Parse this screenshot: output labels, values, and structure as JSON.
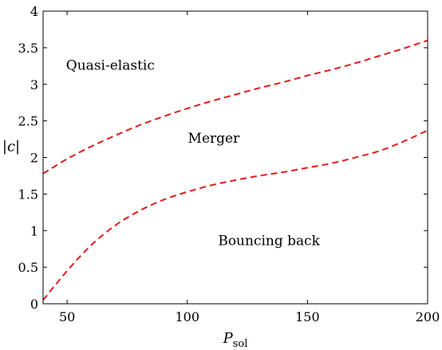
{
  "chart_data": {
    "type": "line",
    "xlabel": "P",
    "xlabel_sub": "sol",
    "ylabel": "|c|",
    "xlim": [
      40,
      200
    ],
    "ylim": [
      0,
      4
    ],
    "xticks": [
      50,
      100,
      150,
      200
    ],
    "yticks": [
      0,
      0.5,
      1,
      1.5,
      2,
      2.5,
      3,
      3.5,
      4
    ],
    "ytick_labels": [
      "0",
      "0.5",
      "1",
      "1.5",
      "2",
      "2.5",
      "3",
      "3.5",
      "4"
    ],
    "grid": false,
    "line_color": "#e41a1c",
    "line_style": "dashed",
    "series": [
      {
        "x": [
          40,
          50,
          60,
          70,
          80,
          90,
          100,
          110,
          120,
          130,
          140,
          150,
          160,
          170,
          180,
          190,
          200
        ],
        "y": [
          1.78,
          1.98,
          2.15,
          2.3,
          2.44,
          2.56,
          2.67,
          2.77,
          2.86,
          2.95,
          3.03,
          3.12,
          3.2,
          3.29,
          3.39,
          3.49,
          3.6
        ]
      },
      {
        "x": [
          40,
          50,
          60,
          70,
          80,
          90,
          100,
          110,
          120,
          130,
          140,
          150,
          160,
          170,
          180,
          190,
          200
        ],
        "y": [
          0.05,
          0.45,
          0.8,
          1.07,
          1.27,
          1.42,
          1.53,
          1.62,
          1.69,
          1.75,
          1.8,
          1.86,
          1.92,
          2.0,
          2.09,
          2.22,
          2.37
        ]
      }
    ],
    "annotations": [
      {
        "text": "Quasi-elastic",
        "x": 68,
        "y": 3.2
      },
      {
        "text": "Merger",
        "x": 111,
        "y": 2.2
      },
      {
        "text": "Bouncing back",
        "x": 134,
        "y": 0.8
      }
    ]
  }
}
